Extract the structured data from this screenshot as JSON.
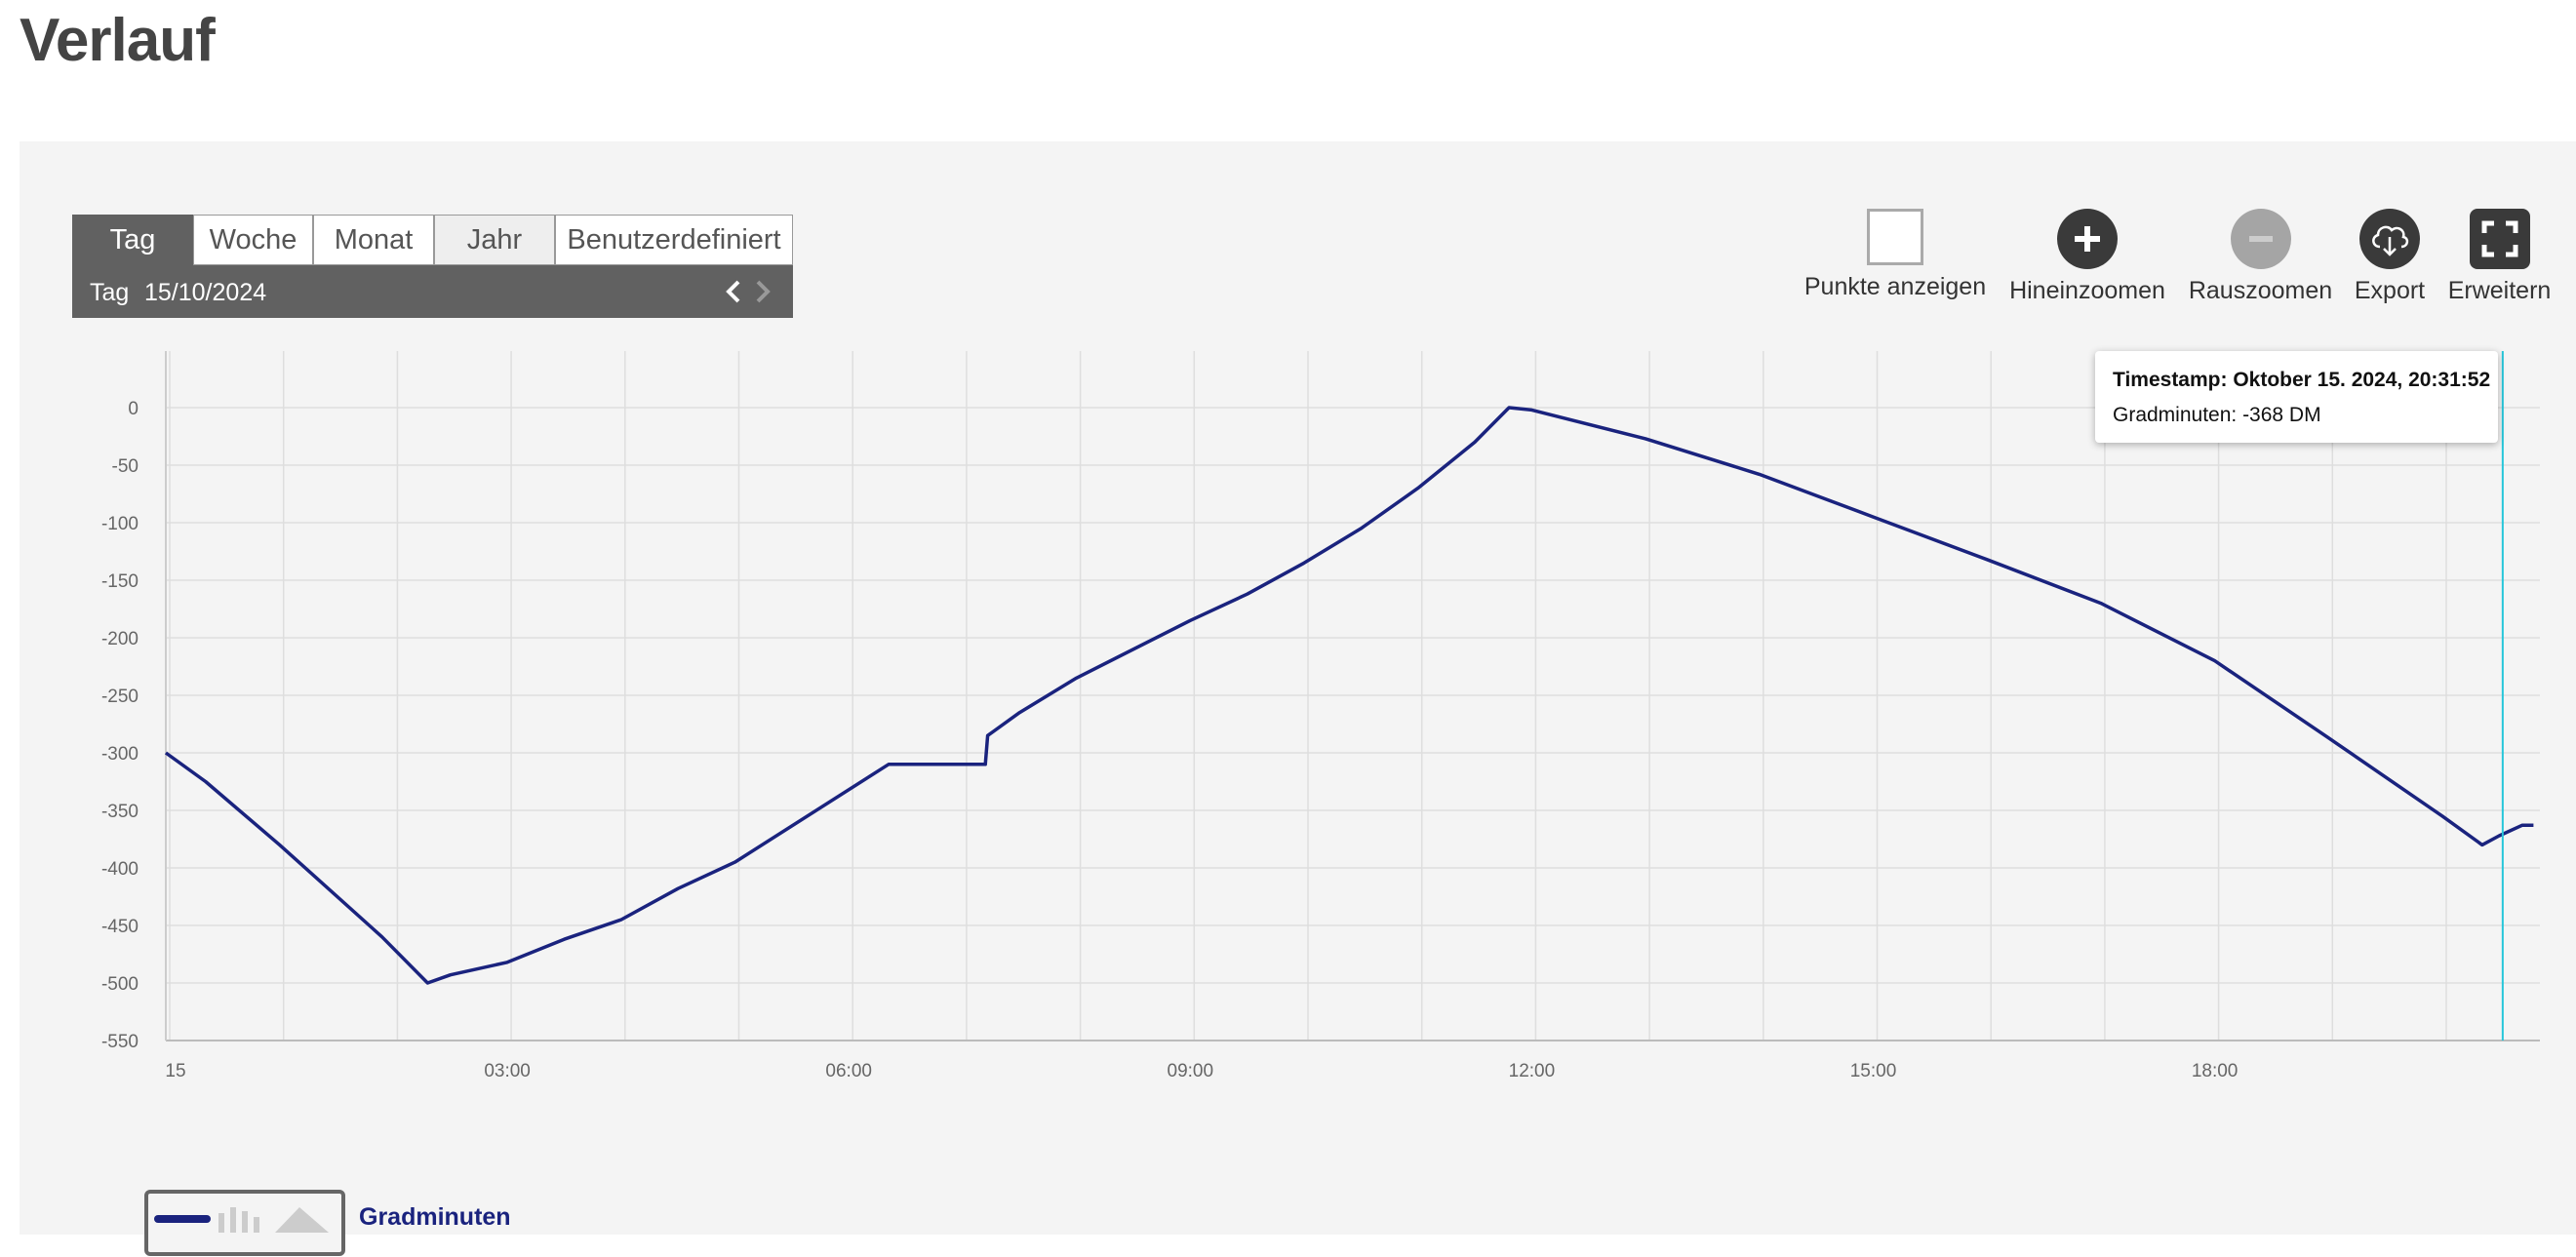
{
  "page": {
    "title": "Verlauf"
  },
  "range_selector": {
    "tabs": [
      {
        "label": "Tag",
        "state": "active"
      },
      {
        "label": "Woche",
        "state": "normal"
      },
      {
        "label": "Monat",
        "state": "normal"
      },
      {
        "label": "Jahr",
        "state": "hover"
      },
      {
        "label": "Benutzerdefiniert",
        "state": "normal"
      }
    ],
    "period_label": "Tag",
    "date": "15/10/2024",
    "prev_icon": "chevron-left-icon",
    "next_icon": "chevron-right-icon"
  },
  "toolbar": {
    "show_points": "Punkte anzeigen",
    "zoom_in": "Hineinzoomen",
    "zoom_out": "Rauszoomen",
    "export": "Export",
    "expand": "Erweitern"
  },
  "tooltip": {
    "line1": "Timestamp: Oktober 15. 2024, 20:31:52",
    "line2": "Gradminuten: -368 DM"
  },
  "legend": {
    "series_name": "Gradminuten"
  },
  "colors": {
    "line": "#1a237e",
    "crosshair": "#26c6da",
    "panel": "#f4f4f4"
  },
  "chart_data": {
    "type": "line",
    "title": "",
    "xlabel": "",
    "ylabel": "",
    "x_tick_labels": [
      "15",
      "03:00",
      "06:00",
      "09:00",
      "12:00",
      "15:00",
      "18:00"
    ],
    "y_tick_labels": [
      "0",
      "-50",
      "-100",
      "-150",
      "-200",
      "-250",
      "-300",
      "-350",
      "-400",
      "-450",
      "-500",
      "-550"
    ],
    "ylim": [
      -550,
      0
    ],
    "xlim_hours": [
      0,
      20.8
    ],
    "grid": true,
    "legend_position": "bottom-left",
    "series": [
      {
        "name": "Gradminuten",
        "points": [
          [
            0.0,
            -300
          ],
          [
            0.35,
            -325
          ],
          [
            1.0,
            -380
          ],
          [
            1.9,
            -460
          ],
          [
            2.3,
            -500
          ],
          [
            2.5,
            -493
          ],
          [
            3.0,
            -482
          ],
          [
            3.5,
            -462
          ],
          [
            4.0,
            -445
          ],
          [
            4.5,
            -418
          ],
          [
            5.0,
            -395
          ],
          [
            6.35,
            -310
          ],
          [
            7.2,
            -310
          ],
          [
            7.22,
            -285
          ],
          [
            7.5,
            -265
          ],
          [
            8.0,
            -235
          ],
          [
            9.0,
            -185
          ],
          [
            9.5,
            -162
          ],
          [
            10.0,
            -135
          ],
          [
            10.5,
            -105
          ],
          [
            11.0,
            -70
          ],
          [
            11.5,
            -30
          ],
          [
            11.8,
            0
          ],
          [
            12.0,
            -2
          ],
          [
            13.0,
            -27
          ],
          [
            14.0,
            -58
          ],
          [
            15.0,
            -95
          ],
          [
            16.0,
            -132
          ],
          [
            17.0,
            -170
          ],
          [
            18.0,
            -220
          ],
          [
            19.0,
            -287
          ],
          [
            20.0,
            -355
          ],
          [
            20.35,
            -380
          ],
          [
            20.5,
            -372
          ],
          [
            20.7,
            -363
          ],
          [
            20.8,
            -363
          ]
        ]
      }
    ],
    "crosshair_hours": 20.53
  }
}
